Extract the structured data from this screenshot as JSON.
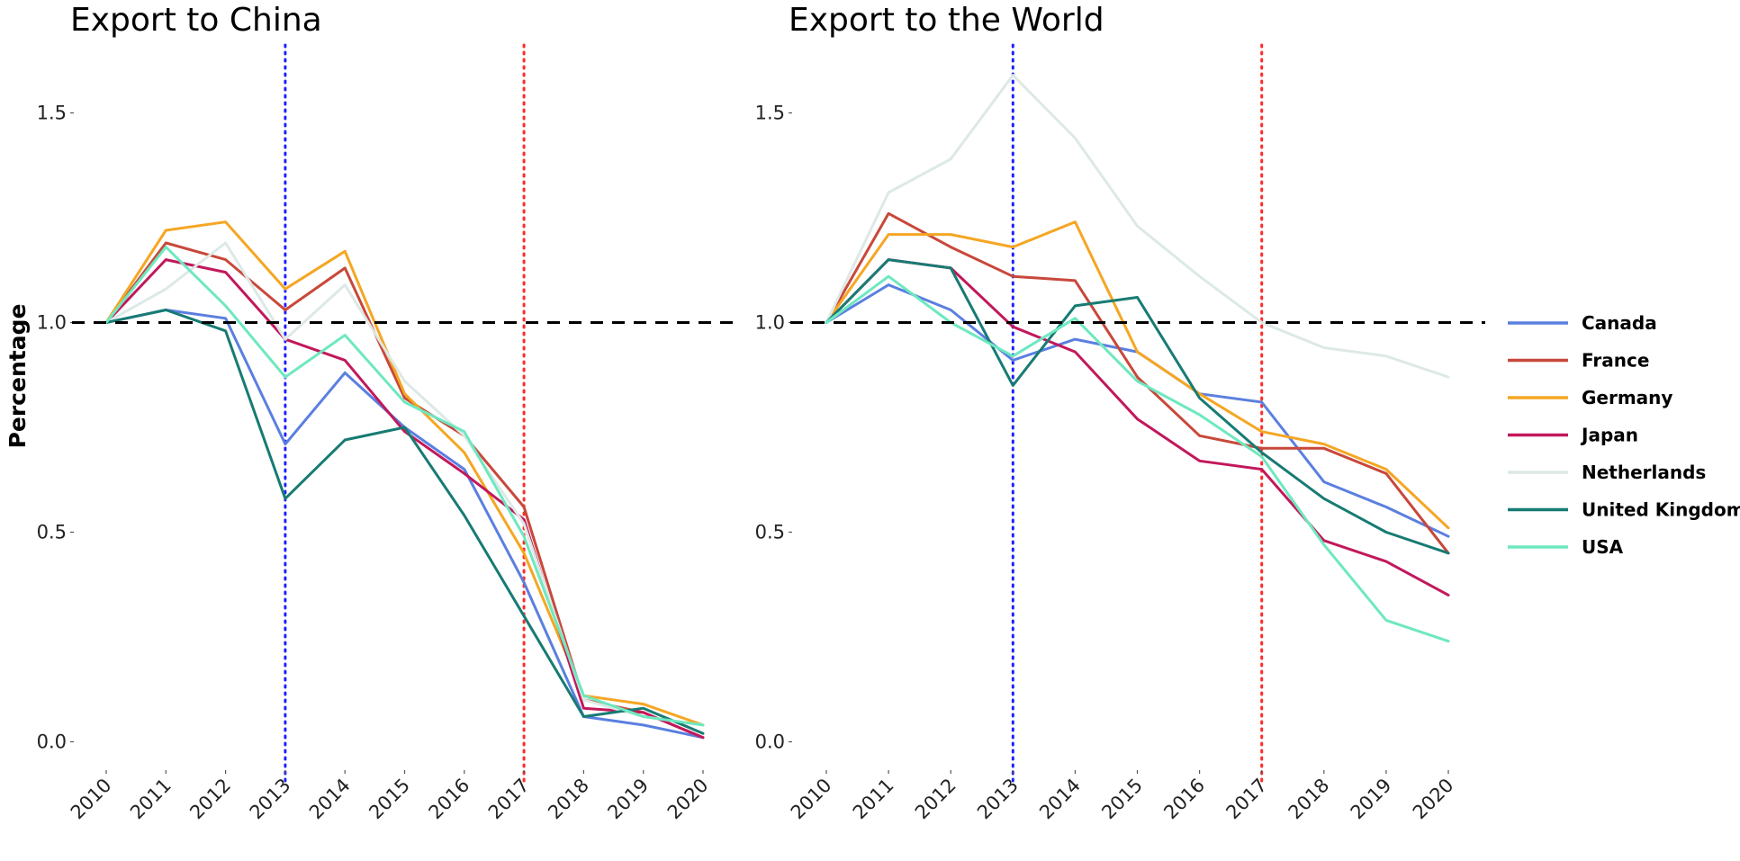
{
  "ylabel": "Percentage",
  "x_ticks": [
    "2010",
    "2011",
    "2012",
    "2013",
    "2014",
    "2015",
    "2016",
    "2017",
    "2018",
    "2019",
    "2020"
  ],
  "y_ticks": [
    "0.0",
    "0.5",
    "1.0",
    "1.5"
  ],
  "reference_line": {
    "y": 1.0,
    "style": "dashed",
    "color": "#000000"
  },
  "vlines": [
    {
      "x": "2013",
      "color": "#1f1fff",
      "style": "dotted"
    },
    {
      "x": "2017",
      "color": "#ff2b2b",
      "style": "dotted"
    }
  ],
  "legend": {
    "placement": "right",
    "entries": [
      {
        "name": "Canada",
        "color": "#5B7FE0"
      },
      {
        "name": "France",
        "color": "#C8483A"
      },
      {
        "name": "Germany",
        "color": "#F5A623"
      },
      {
        "name": "Japan",
        "color": "#C2185B"
      },
      {
        "name": "Netherlands",
        "color": "#DDE9E6"
      },
      {
        "name": "United Kingdom",
        "color": "#177B73"
      },
      {
        "name": "USA",
        "color": "#6EE8C0"
      }
    ]
  },
  "chart_data": [
    {
      "type": "line",
      "title": "Export to China",
      "ylim": [
        -0.1,
        1.65
      ],
      "x": [
        "2010",
        "2011",
        "2012",
        "2013",
        "2014",
        "2015",
        "2016",
        "2017",
        "2018",
        "2019",
        "2020"
      ],
      "series": [
        {
          "name": "Canada",
          "values": [
            1.0,
            1.03,
            1.01,
            0.71,
            0.88,
            0.75,
            0.65,
            0.38,
            0.06,
            0.04,
            0.01
          ]
        },
        {
          "name": "France",
          "values": [
            1.0,
            1.19,
            1.15,
            1.03,
            1.13,
            0.82,
            0.73,
            0.56,
            0.1,
            0.07,
            0.01
          ]
        },
        {
          "name": "Germany",
          "values": [
            1.0,
            1.22,
            1.24,
            1.08,
            1.17,
            0.83,
            0.69,
            0.45,
            0.11,
            0.09,
            0.04
          ]
        },
        {
          "name": "Japan",
          "values": [
            1.0,
            1.15,
            1.12,
            0.96,
            0.91,
            0.74,
            0.64,
            0.53,
            0.08,
            0.07,
            0.01
          ]
        },
        {
          "name": "Netherlands",
          "values": [
            1.0,
            1.08,
            1.19,
            0.96,
            1.09,
            0.86,
            0.73,
            0.52,
            0.1,
            0.06,
            0.04
          ]
        },
        {
          "name": "United Kingdom",
          "values": [
            1.0,
            1.03,
            0.98,
            0.58,
            0.72,
            0.75,
            0.54,
            0.3,
            0.06,
            0.08,
            0.02
          ]
        },
        {
          "name": "USA",
          "values": [
            1.0,
            1.18,
            1.04,
            0.87,
            0.97,
            0.81,
            0.74,
            0.49,
            0.11,
            0.06,
            0.04
          ]
        }
      ]
    },
    {
      "type": "line",
      "title": "Export to the World",
      "ylim": [
        -0.1,
        1.65
      ],
      "x": [
        "2010",
        "2011",
        "2012",
        "2013",
        "2014",
        "2015",
        "2016",
        "2017",
        "2018",
        "2019",
        "2020"
      ],
      "series": [
        {
          "name": "Canada",
          "values": [
            1.0,
            1.09,
            1.03,
            0.91,
            0.96,
            0.93,
            0.83,
            0.81,
            0.62,
            0.56,
            0.49
          ]
        },
        {
          "name": "France",
          "values": [
            1.0,
            1.26,
            1.18,
            1.11,
            1.1,
            0.87,
            0.73,
            0.7,
            0.7,
            0.64,
            0.45
          ]
        },
        {
          "name": "Germany",
          "values": [
            1.0,
            1.21,
            1.21,
            1.18,
            1.24,
            0.93,
            0.83,
            0.74,
            0.71,
            0.65,
            0.51
          ]
        },
        {
          "name": "Japan",
          "values": [
            1.0,
            1.15,
            1.13,
            0.99,
            0.93,
            0.77,
            0.67,
            0.65,
            0.48,
            0.43,
            0.35
          ]
        },
        {
          "name": "Netherlands",
          "values": [
            1.0,
            1.31,
            1.39,
            1.59,
            1.44,
            1.23,
            1.11,
            1.0,
            0.94,
            0.92,
            0.87
          ]
        },
        {
          "name": "United Kingdom",
          "values": [
            1.0,
            1.15,
            1.13,
            0.85,
            1.04,
            1.06,
            0.82,
            0.69,
            0.58,
            0.5,
            0.45
          ]
        },
        {
          "name": "USA",
          "values": [
            1.0,
            1.11,
            1.0,
            0.92,
            1.01,
            0.86,
            0.78,
            0.68,
            0.47,
            0.29,
            0.24
          ]
        }
      ]
    }
  ]
}
